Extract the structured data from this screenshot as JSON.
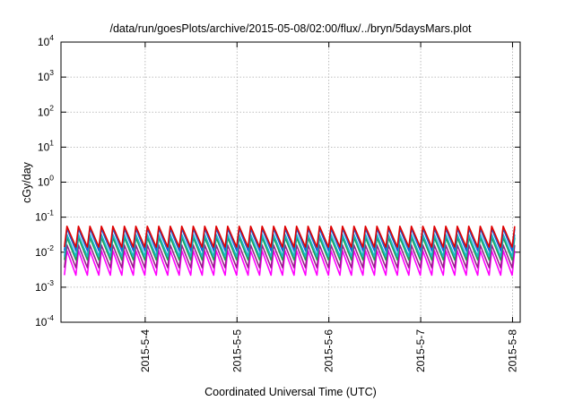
{
  "chart_data": {
    "type": "line",
    "title": "/data/run/goesPlots/archive/2015-05-08/02:00/flux/../bryn/5daysMars.plot",
    "xlabel": "Coordinated Universal Time (UTC)",
    "ylabel": "cGy/day",
    "y_scale": "log",
    "ylim": [
      0.0001,
      10000
    ],
    "xlim": [
      "2015-05-03T02:00",
      "2015-05-08T02:00"
    ],
    "x_ticks": [
      "2015-5-4",
      "2015-5-5",
      "2015-5-6",
      "2015-5-7",
      "2015-5-8"
    ],
    "y_ticks": [
      {
        "base": "10",
        "exp": "-4"
      },
      {
        "base": "10",
        "exp": "-3"
      },
      {
        "base": "10",
        "exp": "-2"
      },
      {
        "base": "10",
        "exp": "-1"
      },
      {
        "base": "10",
        "exp": "0"
      },
      {
        "base": "10",
        "exp": "1"
      },
      {
        "base": "10",
        "exp": "2"
      },
      {
        "base": "10",
        "exp": "3"
      },
      {
        "base": "10",
        "exp": "4"
      }
    ],
    "grid": true,
    "legend": "none",
    "sawtooth_period_hours": 3,
    "series": [
      {
        "color": "#e00000",
        "peak": 0.055,
        "trough": 0.014
      },
      {
        "color": "#1a5fd6",
        "peak": 0.047,
        "trough": 0.011
      },
      {
        "color": "#14b8c8",
        "peak": 0.032,
        "trough": 0.0075
      },
      {
        "color": "#20a050",
        "peak": 0.026,
        "trough": 0.006
      },
      {
        "color": "#9a1e8c",
        "peak": 0.016,
        "trough": 0.0036
      },
      {
        "color": "#ff00ff",
        "peak": 0.011,
        "trough": 0.0022
      }
    ]
  }
}
